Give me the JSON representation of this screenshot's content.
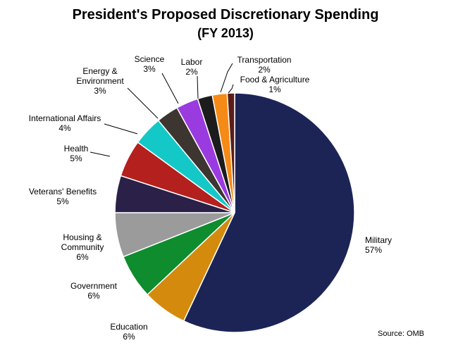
{
  "chart_data": {
    "type": "pie",
    "title": "President's Proposed Discretionary  Spending",
    "subtitle": "(FY 2013)",
    "source": "Source: OMB",
    "slices": [
      {
        "label": [
          "Military"
        ],
        "pct": "57%",
        "value": 57,
        "color": "#1c2456"
      },
      {
        "label": [
          "Education"
        ],
        "pct": "6%",
        "value": 6,
        "color": "#d48a0c"
      },
      {
        "label": [
          "Government"
        ],
        "pct": "6%",
        "value": 6,
        "color": "#0e8c2e"
      },
      {
        "label": [
          "Housing &",
          "Community"
        ],
        "pct": "6%",
        "value": 6,
        "color": "#9b9b9b"
      },
      {
        "label": [
          "Veterans' Benefits"
        ],
        "pct": "5%",
        "value": 5,
        "color": "#2a2048"
      },
      {
        "label": [
          "Health"
        ],
        "pct": "5%",
        "value": 5,
        "color": "#b3201e"
      },
      {
        "label": [
          "International  Affairs"
        ],
        "pct": "4%",
        "value": 4,
        "color": "#14c8c8"
      },
      {
        "label": [
          "Energy &",
          "Environment"
        ],
        "pct": "3%",
        "value": 3,
        "color": "#3d3530"
      },
      {
        "label": [
          "Science"
        ],
        "pct": "3%",
        "value": 3,
        "color": "#9a3be0"
      },
      {
        "label": [
          "Labor"
        ],
        "pct": "2%",
        "value": 2,
        "color": "#1c1c1c"
      },
      {
        "label": [
          "Transportation"
        ],
        "pct": "2%",
        "value": 2,
        "color": "#f58a16"
      },
      {
        "label": [
          "Food & Agriculture"
        ],
        "pct": "1%",
        "value": 1,
        "color": "#5a1e1a"
      }
    ]
  }
}
